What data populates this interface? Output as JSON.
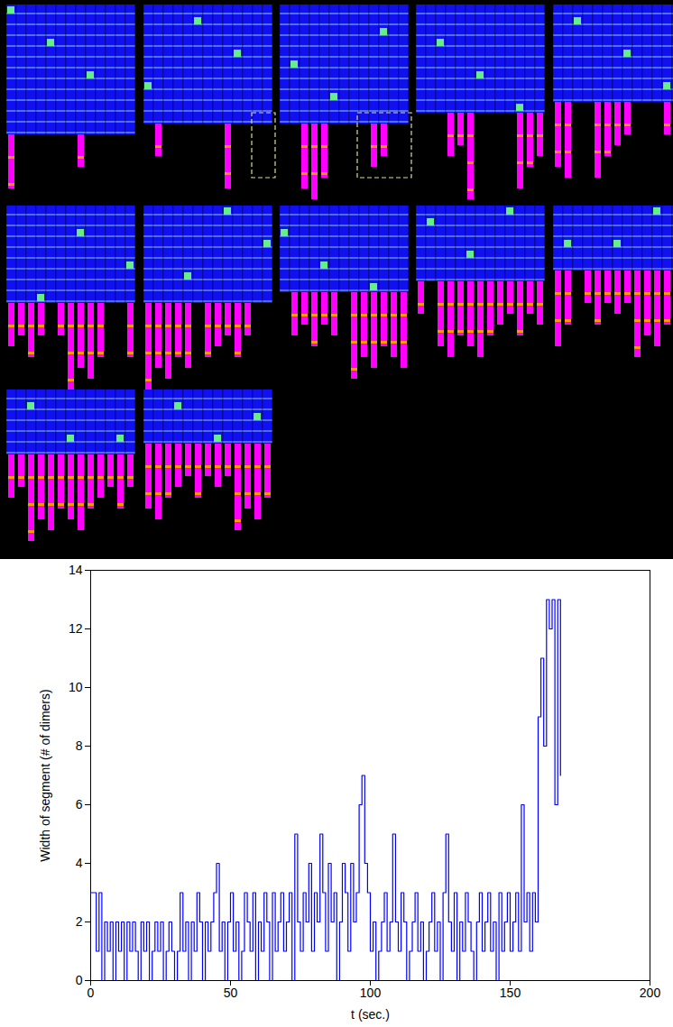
{
  "chart_data": {
    "type": "line",
    "x_label": "t (sec.)",
    "y_label": "Width of segment (# of dimers)",
    "xlim": [
      0,
      200
    ],
    "xticks": [
      0,
      50,
      100,
      150,
      200
    ],
    "ylim": [
      0,
      14
    ],
    "yticks": [
      0,
      2,
      4,
      6,
      8,
      10,
      12,
      14
    ],
    "grid": false,
    "line_style": "step",
    "color": "#0000ff",
    "x": [
      0,
      1,
      2,
      3,
      4,
      5,
      6,
      7,
      8,
      9,
      10,
      11,
      12,
      13,
      14,
      15,
      16,
      17,
      18,
      19,
      20,
      21,
      22,
      23,
      24,
      25,
      26,
      27,
      28,
      29,
      30,
      31,
      32,
      33,
      34,
      35,
      36,
      37,
      38,
      39,
      40,
      41,
      42,
      43,
      44,
      45,
      46,
      47,
      48,
      49,
      50,
      51,
      52,
      53,
      54,
      55,
      56,
      57,
      58,
      59,
      60,
      61,
      62,
      63,
      64,
      65,
      66,
      67,
      68,
      69,
      70,
      71,
      72,
      73,
      74,
      75,
      76,
      77,
      78,
      79,
      80,
      81,
      82,
      83,
      84,
      85,
      86,
      87,
      88,
      89,
      90,
      91,
      92,
      93,
      94,
      95,
      96,
      97,
      98,
      99,
      100,
      101,
      102,
      103,
      104,
      105,
      106,
      107,
      108,
      109,
      110,
      111,
      112,
      113,
      114,
      115,
      116,
      117,
      118,
      119,
      120,
      121,
      122,
      123,
      124,
      125,
      126,
      127,
      128,
      129,
      130,
      131,
      132,
      133,
      134,
      135,
      136,
      137,
      138,
      139,
      140,
      141,
      142,
      143,
      144,
      145,
      146,
      147,
      148,
      149,
      150,
      151,
      152,
      153,
      154,
      155,
      156,
      157,
      158,
      159,
      160,
      161,
      162,
      163,
      164,
      165,
      166,
      167,
      168
    ],
    "values": [
      3,
      3,
      1,
      3,
      0,
      2,
      1,
      2,
      0,
      2,
      1,
      2,
      0,
      2,
      1,
      2,
      1,
      0,
      2,
      1,
      2,
      0,
      1,
      2,
      1,
      2,
      0,
      1,
      2,
      1,
      0,
      1,
      3,
      1,
      2,
      0,
      2,
      1,
      3,
      2,
      0,
      2,
      1,
      2,
      3,
      4,
      1,
      2,
      0,
      2,
      3,
      1,
      2,
      0,
      1,
      3,
      2,
      1,
      3,
      0,
      2,
      1,
      3,
      2,
      0,
      3,
      1,
      2,
      3,
      1,
      2,
      3,
      0,
      5,
      2,
      1,
      3,
      2,
      4,
      1,
      3,
      2,
      5,
      3,
      1,
      4,
      2,
      3,
      0,
      2,
      4,
      3,
      1,
      4,
      2,
      3,
      6,
      7,
      4,
      3,
      1,
      2,
      0,
      1,
      2,
      3,
      1,
      2,
      5,
      2,
      1,
      3,
      2,
      0,
      1,
      2,
      3,
      1,
      2,
      0,
      1,
      2,
      3,
      1,
      2,
      0,
      3,
      5,
      2,
      1,
      3,
      0,
      2,
      1,
      3,
      2,
      1,
      0,
      2,
      3,
      1,
      2,
      3,
      1,
      2,
      0,
      3,
      1,
      2,
      3,
      1,
      2,
      3,
      1,
      6,
      2,
      3,
      1,
      3,
      2,
      9,
      11,
      8,
      13,
      12,
      13,
      6,
      13,
      7
    ]
  }
}
